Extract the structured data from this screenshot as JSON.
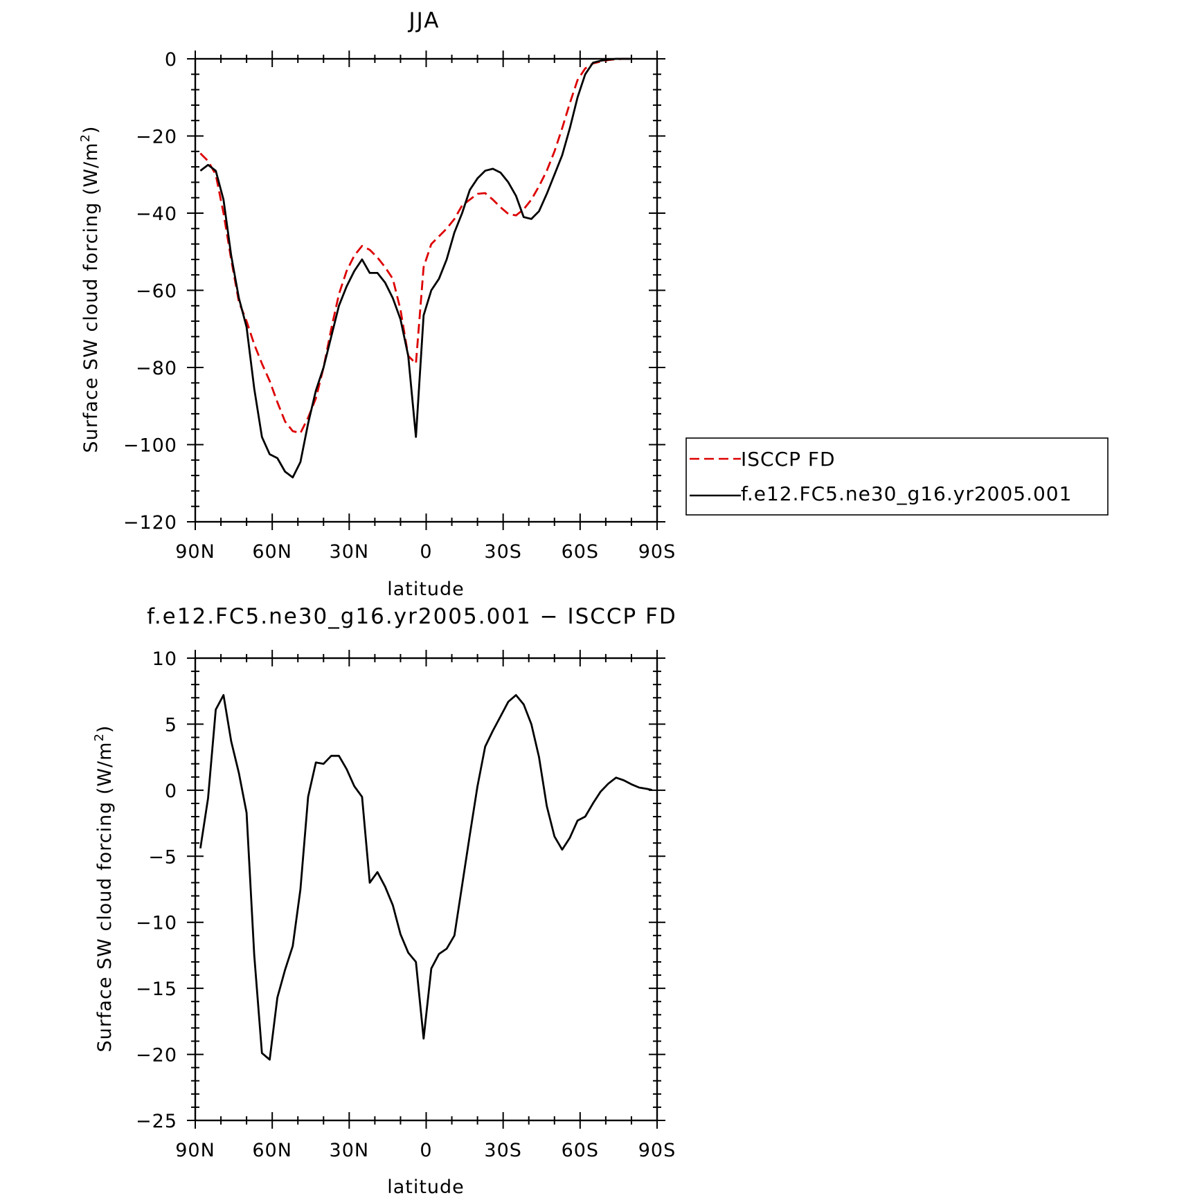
{
  "chart_data": [
    {
      "type": "line",
      "title": "JJA",
      "xlabel": "latitude",
      "ylabel_text": "Surface SW cloud forcing (W/m",
      "ylabel_sup": "2",
      "ylabel_close": ")",
      "xlim": [
        90,
        -90
      ],
      "ylim": [
        -120,
        0
      ],
      "xticks": [
        90,
        60,
        30,
        0,
        -30,
        -60,
        -90
      ],
      "xtick_labels": [
        "90N",
        "60N",
        "30N",
        "0",
        "30S",
        "60S",
        "90S"
      ],
      "yticks": [
        0,
        -20,
        -40,
        -60,
        -80,
        -100,
        -120
      ],
      "ytick_labels": [
        "0",
        "−20",
        "−40",
        "−60",
        "−80",
        "−100",
        "−120"
      ],
      "legend": {
        "position": "right"
      },
      "series": [
        {
          "name": "ISCCP FD",
          "color": "#dd0000",
          "dash": "dashed",
          "x": [
            88,
            85,
            82,
            79,
            76,
            73,
            70,
            67,
            64,
            61,
            58,
            55,
            52,
            49,
            46,
            43,
            40,
            37,
            34,
            31,
            28,
            25,
            22,
            19,
            16,
            13,
            10,
            7,
            4,
            1,
            -2,
            -5,
            -8,
            -11,
            -14,
            -17,
            -20,
            -23,
            -26,
            -29,
            -32,
            -35,
            -38,
            -41,
            -44,
            -47,
            -50,
            -53,
            -56,
            -59,
            -62,
            -65,
            -68,
            -71,
            -74,
            -77,
            -80
          ],
          "values": [
            -24.5,
            -26.5,
            -30,
            -40,
            -52,
            -63,
            -68,
            -74,
            -79,
            -83.5,
            -89,
            -94,
            -96.5,
            -97,
            -93,
            -88,
            -80,
            -70,
            -61,
            -55,
            -51,
            -48.5,
            -49.5,
            -51.5,
            -54,
            -57,
            -65,
            -77,
            -79,
            -54,
            -48,
            -46,
            -44,
            -41.5,
            -38,
            -36.5,
            -35,
            -34.8,
            -36.5,
            -38.5,
            -40.2,
            -40.6,
            -39,
            -36.5,
            -33,
            -29,
            -24,
            -18,
            -11.5,
            -5.5,
            -2.5,
            -1.2,
            -0.7,
            -0.3,
            -0.1,
            0,
            0
          ]
        },
        {
          "name": "f.e12.FC5.ne30_g16.yr2005.001",
          "color": "#000000",
          "dash": "solid",
          "x": [
            88,
            85,
            82,
            79,
            76,
            73,
            70,
            67,
            64,
            61,
            58,
            55,
            52,
            49,
            46,
            43,
            40,
            37,
            34,
            31,
            28,
            25,
            22,
            19,
            16,
            13,
            10,
            7,
            4,
            1,
            -2,
            -5,
            -8,
            -11,
            -14,
            -17,
            -20,
            -23,
            -26,
            -29,
            -32,
            -35,
            -38,
            -41,
            -44,
            -47,
            -50,
            -53,
            -56,
            -59,
            -62,
            -65,
            -68,
            -71,
            -74,
            -77,
            -80
          ],
          "values": [
            -29,
            -27.5,
            -29,
            -36.5,
            -51,
            -62,
            -69.5,
            -85.5,
            -98,
            -102.5,
            -103.5,
            -107,
            -108.5,
            -104.5,
            -94.5,
            -86,
            -80,
            -72,
            -64,
            -59,
            -55,
            -52,
            -55.5,
            -55.5,
            -58,
            -62,
            -67.5,
            -77,
            -98,
            -66.5,
            -60,
            -57,
            -52,
            -45,
            -40,
            -34,
            -31,
            -29,
            -28.5,
            -29.5,
            -32,
            -35.5,
            -41,
            -41.5,
            -39.5,
            -35,
            -30,
            -25,
            -18,
            -10,
            -4,
            -1,
            -0.5,
            -0.2,
            0,
            0,
            0
          ]
        }
      ]
    },
    {
      "type": "line",
      "title": "f.e12.FC5.ne30_g16.yr2005.001 − ISCCP FD",
      "xlabel": "latitude",
      "ylabel_text": "Surface SW cloud forcing (W/m",
      "ylabel_sup": "2",
      "ylabel_close": ")",
      "xlim": [
        90,
        -90
      ],
      "ylim": [
        -25,
        10
      ],
      "xticks": [
        90,
        60,
        30,
        0,
        -30,
        -60,
        -90
      ],
      "xtick_labels": [
        "90N",
        "60N",
        "30N",
        "0",
        "30S",
        "60S",
        "90S"
      ],
      "yticks": [
        10,
        5,
        0,
        -5,
        -10,
        -15,
        -20,
        -25
      ],
      "ytick_labels": [
        "10",
        "5",
        "0",
        "−5",
        "−10",
        "−15",
        "−20",
        "−25"
      ],
      "series": [
        {
          "color": "#000000",
          "dash": "solid",
          "x": [
            88,
            85,
            82,
            79,
            76,
            73,
            70,
            67,
            64,
            61,
            58,
            55,
            52,
            49,
            46,
            43,
            40,
            37,
            34,
            31,
            28,
            25,
            22,
            19,
            16,
            13,
            10,
            7,
            4,
            1,
            -2,
            -5,
            -8,
            -11,
            -14,
            -17,
            -20,
            -23,
            -26,
            -29,
            -32,
            -35,
            -38,
            -41,
            -44,
            -47,
            -50,
            -53,
            -56,
            -59,
            -62,
            -65,
            -68,
            -71,
            -74,
            -77,
            -80,
            -83,
            -86,
            -88
          ],
          "values": [
            -4.4,
            -0.6,
            6.1,
            7.2,
            3.7,
            1.3,
            -1.7,
            -12.5,
            -19.9,
            -20.4,
            -15.7,
            -13.6,
            -11.8,
            -7.5,
            -0.5,
            2.1,
            2,
            2.6,
            2.6,
            1.6,
            0.3,
            -0.5,
            -7,
            -6.2,
            -7.3,
            -8.7,
            -10.9,
            -12.3,
            -13,
            -18.8,
            -13.5,
            -12.4,
            -12,
            -11,
            -7.2,
            -3.4,
            0.3,
            3.3,
            4.5,
            5.6,
            6.7,
            7.2,
            6.5,
            5,
            2.5,
            -1.2,
            -3.5,
            -4.5,
            -3.6,
            -2.3,
            -2,
            -1,
            -0.1,
            0.5,
            0.95,
            0.75,
            0.45,
            0.2,
            0.1,
            0.02
          ]
        }
      ]
    }
  ]
}
